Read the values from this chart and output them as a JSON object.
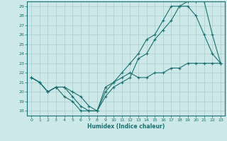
{
  "xlabel": "Humidex (Indice chaleur)",
  "ylabel": "",
  "bg_color": "#cce8e8",
  "line_color": "#1a7070",
  "grid_color": "#aacccc",
  "xlim": [
    -0.5,
    23.5
  ],
  "ylim": [
    17.5,
    29.5
  ],
  "yticks": [
    18,
    19,
    20,
    21,
    22,
    23,
    24,
    25,
    26,
    27,
    28,
    29
  ],
  "xticks": [
    0,
    1,
    2,
    3,
    4,
    5,
    6,
    7,
    8,
    9,
    10,
    11,
    12,
    13,
    14,
    15,
    16,
    17,
    18,
    19,
    20,
    21,
    22,
    23
  ],
  "line1_x": [
    0,
    1,
    2,
    3,
    4,
    5,
    6,
    7,
    8,
    9,
    10,
    11,
    12,
    13,
    14,
    15,
    16,
    17,
    18,
    19,
    20,
    21,
    22,
    23
  ],
  "line1_y": [
    21.5,
    21.0,
    20.0,
    20.5,
    19.5,
    19.0,
    18.0,
    18.0,
    18.0,
    19.5,
    20.5,
    21.0,
    21.5,
    23.5,
    24.0,
    25.5,
    26.5,
    27.5,
    29.0,
    29.0,
    28.0,
    26.0,
    24.0,
    23.0
  ],
  "line2_x": [
    0,
    1,
    2,
    3,
    4,
    5,
    6,
    7,
    8,
    9,
    10,
    11,
    12,
    13,
    14,
    15,
    16,
    17,
    18,
    19,
    20,
    21,
    22,
    23
  ],
  "line2_y": [
    21.5,
    21.0,
    20.0,
    20.5,
    20.5,
    20.0,
    19.5,
    18.5,
    18.0,
    20.5,
    21.0,
    21.5,
    22.0,
    21.5,
    21.5,
    22.0,
    22.0,
    22.5,
    22.5,
    23.0,
    23.0,
    23.0,
    23.0,
    23.0
  ],
  "line3_x": [
    0,
    1,
    2,
    3,
    4,
    5,
    6,
    7,
    8,
    9,
    10,
    11,
    12,
    13,
    14,
    15,
    16,
    17,
    18,
    19,
    20,
    21,
    22,
    23
  ],
  "line3_y": [
    21.5,
    21.0,
    20.0,
    20.5,
    20.5,
    19.5,
    18.5,
    18.0,
    18.0,
    20.0,
    21.0,
    22.0,
    23.0,
    24.0,
    25.5,
    26.0,
    27.5,
    29.0,
    29.0,
    29.5,
    29.5,
    29.5,
    26.0,
    23.0
  ]
}
